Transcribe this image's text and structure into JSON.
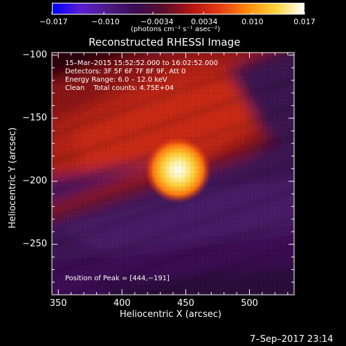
{
  "colorbar": {
    "tick_labels": [
      "−0.017",
      "−0.010",
      "−0.0034",
      "0.0034",
      "0.010",
      "0.017"
    ],
    "tick_values": [
      -0.017,
      -0.01,
      -0.0034,
      0.0034,
      0.01,
      0.017
    ],
    "range": [
      -0.017,
      0.017
    ],
    "units_label": "(photons cm⁻² s⁻¹ asec⁻²)",
    "colors": [
      "#0000ff",
      "#5a1fd2",
      "#4c1a84",
      "#3b0b52",
      "#5a0f2a",
      "#b41414",
      "#e63c14",
      "#ff8c0a",
      "#ffd23c",
      "#ffffff"
    ]
  },
  "plot": {
    "title": "Reconstructed RHESSI Image",
    "xlabel": "Heliocentric X (arcsec)",
    "ylabel": "Heliocentric Y (arcsec)",
    "xlim": [
      345,
      535
    ],
    "ylim": [
      -290,
      -98
    ],
    "x_ticks": [
      350,
      400,
      450,
      500
    ],
    "y_ticks": [
      -100,
      -150,
      -200,
      -250
    ],
    "x_tick_labels": [
      "350",
      "400",
      "450",
      "500"
    ],
    "y_tick_labels": [
      "−100",
      "−150",
      "−200",
      "−250"
    ],
    "peak": [
      444,
      -191
    ]
  },
  "info": {
    "line1": "15–Mar–2015 15:52:52.000 to 16:02:52.000",
    "line2": "Detectors: 3F 5F 6F 7F 8F 9F, Att 0",
    "line3": "Energy Range: 6.0 – 12.0 keV",
    "line4": "Clean    Total counts: 4.75E+04",
    "peak_label": "Position of Peak = [444,−191]"
  },
  "footer": {
    "timestamp": "7–Sep–2017 23:14"
  }
}
